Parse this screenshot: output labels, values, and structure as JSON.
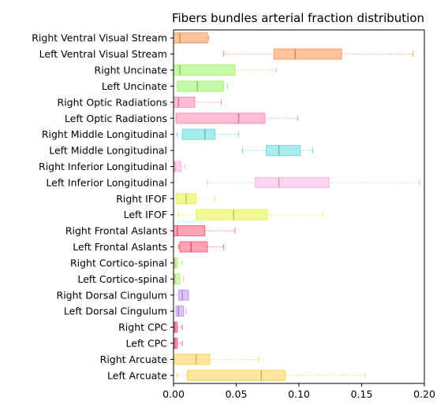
{
  "chart_data": {
    "type": "boxplot",
    "orientation": "horizontal",
    "title": "Fibers bundles arterial fraction distribution",
    "xlabel": "",
    "ylabel": "",
    "xlim": [
      0.0,
      0.2
    ],
    "xticks": [
      "0.00",
      "0.05",
      "0.10",
      "0.15",
      "0.20"
    ],
    "grid": false,
    "whisker_style": "dotted",
    "series": [
      {
        "label": "Right Ventral Visual Stream",
        "color": "#ff9d5c",
        "whislo": 0.0,
        "q1": 0.0,
        "med": 0.005,
        "q3": 0.027,
        "whishi": 0.028
      },
      {
        "label": "Left Ventral Visual Stream",
        "color": "#ff9d5c",
        "whislo": 0.04,
        "q1": 0.08,
        "med": 0.097,
        "q3": 0.134,
        "whishi": 0.191
      },
      {
        "label": "Right Uncinate",
        "color": "#a4f56a",
        "whislo": 0.0,
        "q1": 0.0,
        "med": 0.005,
        "q3": 0.049,
        "whishi": 0.082
      },
      {
        "label": "Left Uncinate",
        "color": "#a4f56a",
        "whislo": 0.0,
        "q1": 0.003,
        "med": 0.019,
        "q3": 0.04,
        "whishi": 0.043
      },
      {
        "label": "Right Optic Radiations",
        "color": "#ff8fb8",
        "whislo": 0.0,
        "q1": 0.0,
        "med": 0.004,
        "q3": 0.017,
        "whishi": 0.038
      },
      {
        "label": "Left Optic Radiations",
        "color": "#ff8fb8",
        "whislo": 0.002,
        "q1": 0.002,
        "med": 0.052,
        "q3": 0.073,
        "whishi": 0.099
      },
      {
        "label": "Right Middle Longitudinal",
        "color": "#6fe0e0",
        "whislo": 0.003,
        "q1": 0.007,
        "med": 0.025,
        "q3": 0.033,
        "whishi": 0.052
      },
      {
        "label": "Left Middle Longitudinal",
        "color": "#6fe0e0",
        "whislo": 0.055,
        "q1": 0.074,
        "med": 0.084,
        "q3": 0.101,
        "whishi": 0.111
      },
      {
        "label": "Right Inferior Longitudinal",
        "color": "#ffb8df",
        "whislo": 0.0,
        "q1": 0.0,
        "med": 0.001,
        "q3": 0.006,
        "whishi": 0.009
      },
      {
        "label": "Left Inferior Longitudinal",
        "color": "#ffb8df",
        "whislo": 0.027,
        "q1": 0.065,
        "med": 0.084,
        "q3": 0.124,
        "whishi": 0.196
      },
      {
        "label": "Right IFOF",
        "color": "#e6f550",
        "whislo": 0.0,
        "q1": 0.002,
        "med": 0.01,
        "q3": 0.018,
        "whishi": 0.033
      },
      {
        "label": "Left IFOF",
        "color": "#e6f550",
        "whislo": 0.004,
        "q1": 0.018,
        "med": 0.048,
        "q3": 0.075,
        "whishi": 0.119
      },
      {
        "label": "Right Frontal Aslants",
        "color": "#ff6680",
        "whislo": 0.0,
        "q1": 0.0,
        "med": 0.003,
        "q3": 0.025,
        "whishi": 0.049
      },
      {
        "label": "Left Frontal Aslants",
        "color": "#ff6680",
        "whislo": 0.004,
        "q1": 0.005,
        "med": 0.014,
        "q3": 0.027,
        "whishi": 0.04
      },
      {
        "label": "Right Cortico-spinal",
        "color": "#b8f07a",
        "whislo": 0.0,
        "q1": 0.0,
        "med": 0.001,
        "q3": 0.003,
        "whishi": 0.007
      },
      {
        "label": "Left Cortico-spinal",
        "color": "#b8f07a",
        "whislo": 0.0,
        "q1": 0.0,
        "med": 0.001,
        "q3": 0.005,
        "whishi": 0.008
      },
      {
        "label": "Right Dorsal Cingulum",
        "color": "#c79cf2",
        "whislo": 0.0,
        "q1": 0.004,
        "med": 0.007,
        "q3": 0.012,
        "whishi": 0.012
      },
      {
        "label": "Left Dorsal Cingulum",
        "color": "#c79cf2",
        "whislo": 0.0,
        "q1": 0.002,
        "med": 0.004,
        "q3": 0.008,
        "whishi": 0.01
      },
      {
        "label": "Right CPC",
        "color": "#ff5c8a",
        "whislo": 0.0,
        "q1": 0.0,
        "med": 0.001,
        "q3": 0.003,
        "whishi": 0.007
      },
      {
        "label": "Left CPC",
        "color": "#ff5c8a",
        "whislo": 0.0,
        "q1": 0.0,
        "med": 0.001,
        "q3": 0.003,
        "whishi": 0.007
      },
      {
        "label": "Right Arcuate",
        "color": "#ffd35c",
        "whislo": 0.0,
        "q1": 0.001,
        "med": 0.018,
        "q3": 0.029,
        "whishi": 0.068
      },
      {
        "label": "Left Arcuate",
        "color": "#ffd35c",
        "whislo": 0.003,
        "q1": 0.011,
        "med": 0.07,
        "q3": 0.089,
        "whishi": 0.153
      }
    ]
  }
}
